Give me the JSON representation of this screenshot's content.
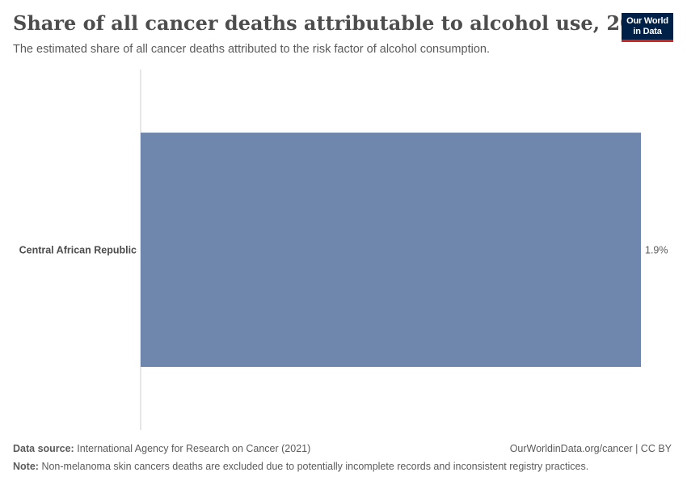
{
  "header": {
    "title": "Share of all cancer deaths attributable to alcohol use, 2020",
    "subtitle": "The estimated share of all cancer deaths attributed to the risk factor of alcohol consumption.",
    "logo_line1": "Our World",
    "logo_line2": "in Data"
  },
  "footer": {
    "source_label": "Data source:",
    "source_text": "International Agency for Research on Cancer (2021)",
    "credit": "OurWorldinData.org/cancer | CC BY",
    "note_label": "Note:",
    "note_text": "Non-melanoma skin cancers deaths are excluded due to potentially incomplete records and inconsistent registry practices."
  },
  "colors": {
    "bar": "#6f87ad",
    "axis": "#cccccc",
    "brand": "#002147",
    "brand_accent": "#ce261e"
  },
  "chart_data": {
    "type": "bar",
    "orientation": "horizontal",
    "categories": [
      "Central African Republic"
    ],
    "values": [
      1.9
    ],
    "value_labels": [
      "1.9%"
    ],
    "unit": "%",
    "title": "Share of all cancer deaths attributable to alcohol use, 2020",
    "xlabel": "",
    "ylabel": "",
    "xlim": [
      0,
      1.9
    ],
    "grid": false
  }
}
